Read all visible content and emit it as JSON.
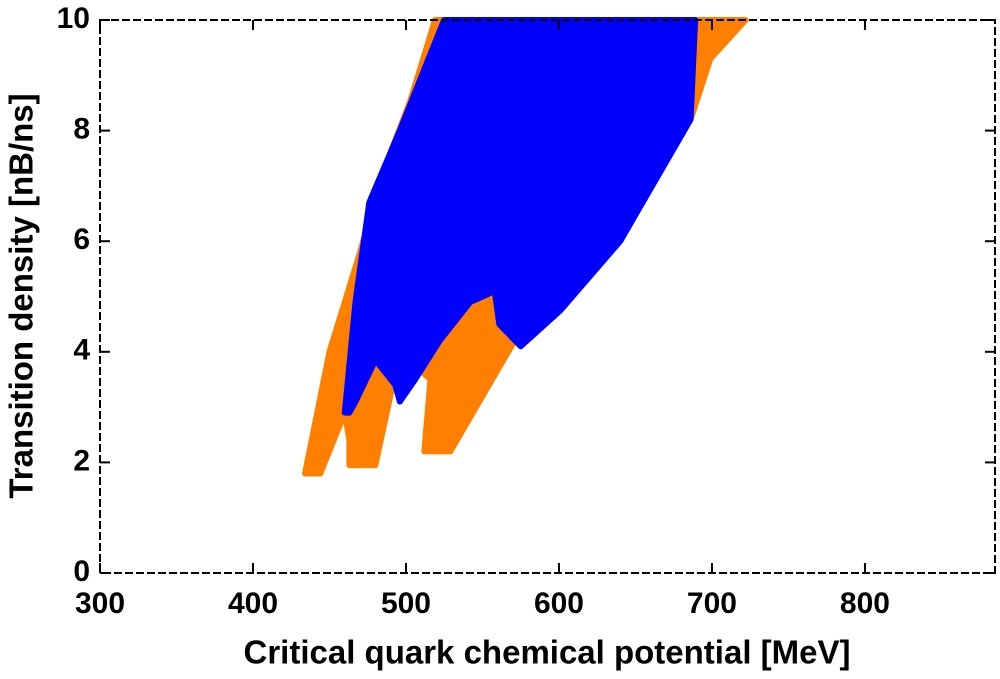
{
  "chart_data": {
    "type": "scatter",
    "xlabel": "Critical quark chemical potential [MeV]",
    "ylabel": "Transition density [nB/ns]",
    "xlim": [
      300,
      885
    ],
    "xticks": [
      300,
      400,
      500,
      600,
      700,
      800
    ],
    "ylim": [
      0,
      10
    ],
    "yticks": [
      0,
      2,
      4,
      6,
      8,
      10
    ],
    "series": [
      {
        "color": "#ff8000",
        "x": [
          434,
          444,
          460,
          463,
          463,
          480,
          496,
          516,
          512,
          529,
          571,
          686,
          699,
          722,
          519,
          503,
          483,
          470,
          450
        ],
        "y": [
          1.8,
          1.8,
          2.9,
          2.4,
          1.95,
          1.95,
          4.0,
          3.5,
          2.2,
          2.2,
          4.2,
          8.2,
          9.3,
          10,
          10,
          8.55,
          7.1,
          5.8,
          4.0
        ]
      },
      {
        "color": "#0000ff",
        "x": [
          460,
          467,
          476,
          496,
          522,
          525,
          689,
          686,
          640,
          601,
          575,
          561,
          558,
          542,
          522,
          506,
          496,
          493,
          480,
          467,
          463
        ],
        "y": [
          2.9,
          4.9,
          6.7,
          8.0,
          9.8,
          10,
          10,
          8.2,
          6.0,
          4.75,
          4.1,
          4.5,
          5.1,
          4.9,
          4.2,
          3.5,
          3.1,
          3.4,
          3.85,
          3.1,
          2.9
        ]
      }
    ]
  }
}
